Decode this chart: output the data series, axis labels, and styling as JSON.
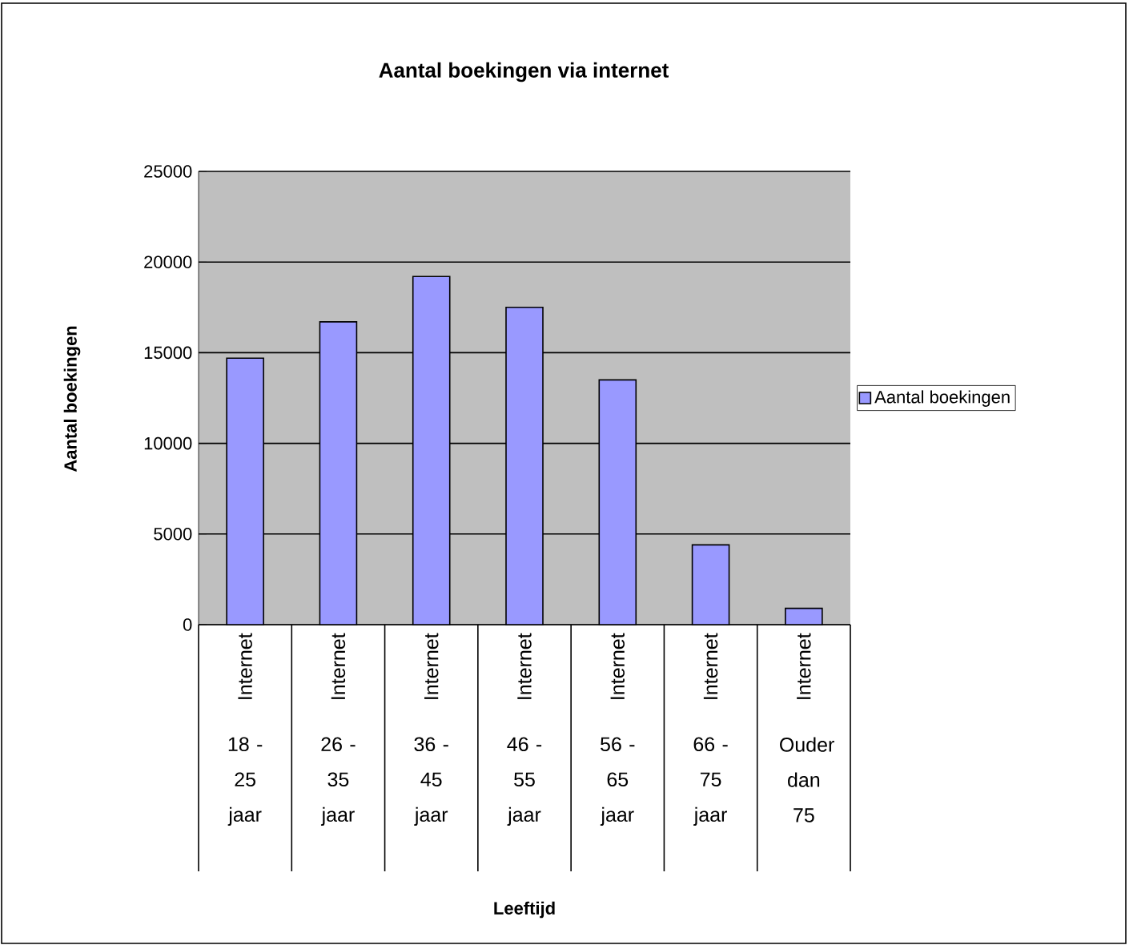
{
  "chart_data": {
    "type": "bar",
    "title": "Aantal boekingen via internet",
    "xlabel": "Leeftijd",
    "ylabel": "Aantal boekingen",
    "categories": [
      "18 - 25 jaar",
      "26 - 35 jaar",
      "36 - 45 jaar",
      "46 - 55 jaar",
      "56 - 65 jaar",
      "66 - 75 jaar",
      "Ouder dan 75"
    ],
    "series": [
      {
        "name": "Aantal boekingen",
        "color": "#9999ff",
        "values": [
          14700,
          16700,
          19200,
          17500,
          13500,
          4400,
          900
        ]
      }
    ],
    "ylim": [
      0,
      25000
    ],
    "yticks": [
      0,
      5000,
      10000,
      15000,
      20000,
      25000
    ],
    "grid": "y",
    "legend": "right",
    "annotations": [
      "Internet",
      "Internet",
      "Internet",
      "Internet",
      "Internet",
      "Internet",
      "Internet"
    ]
  }
}
